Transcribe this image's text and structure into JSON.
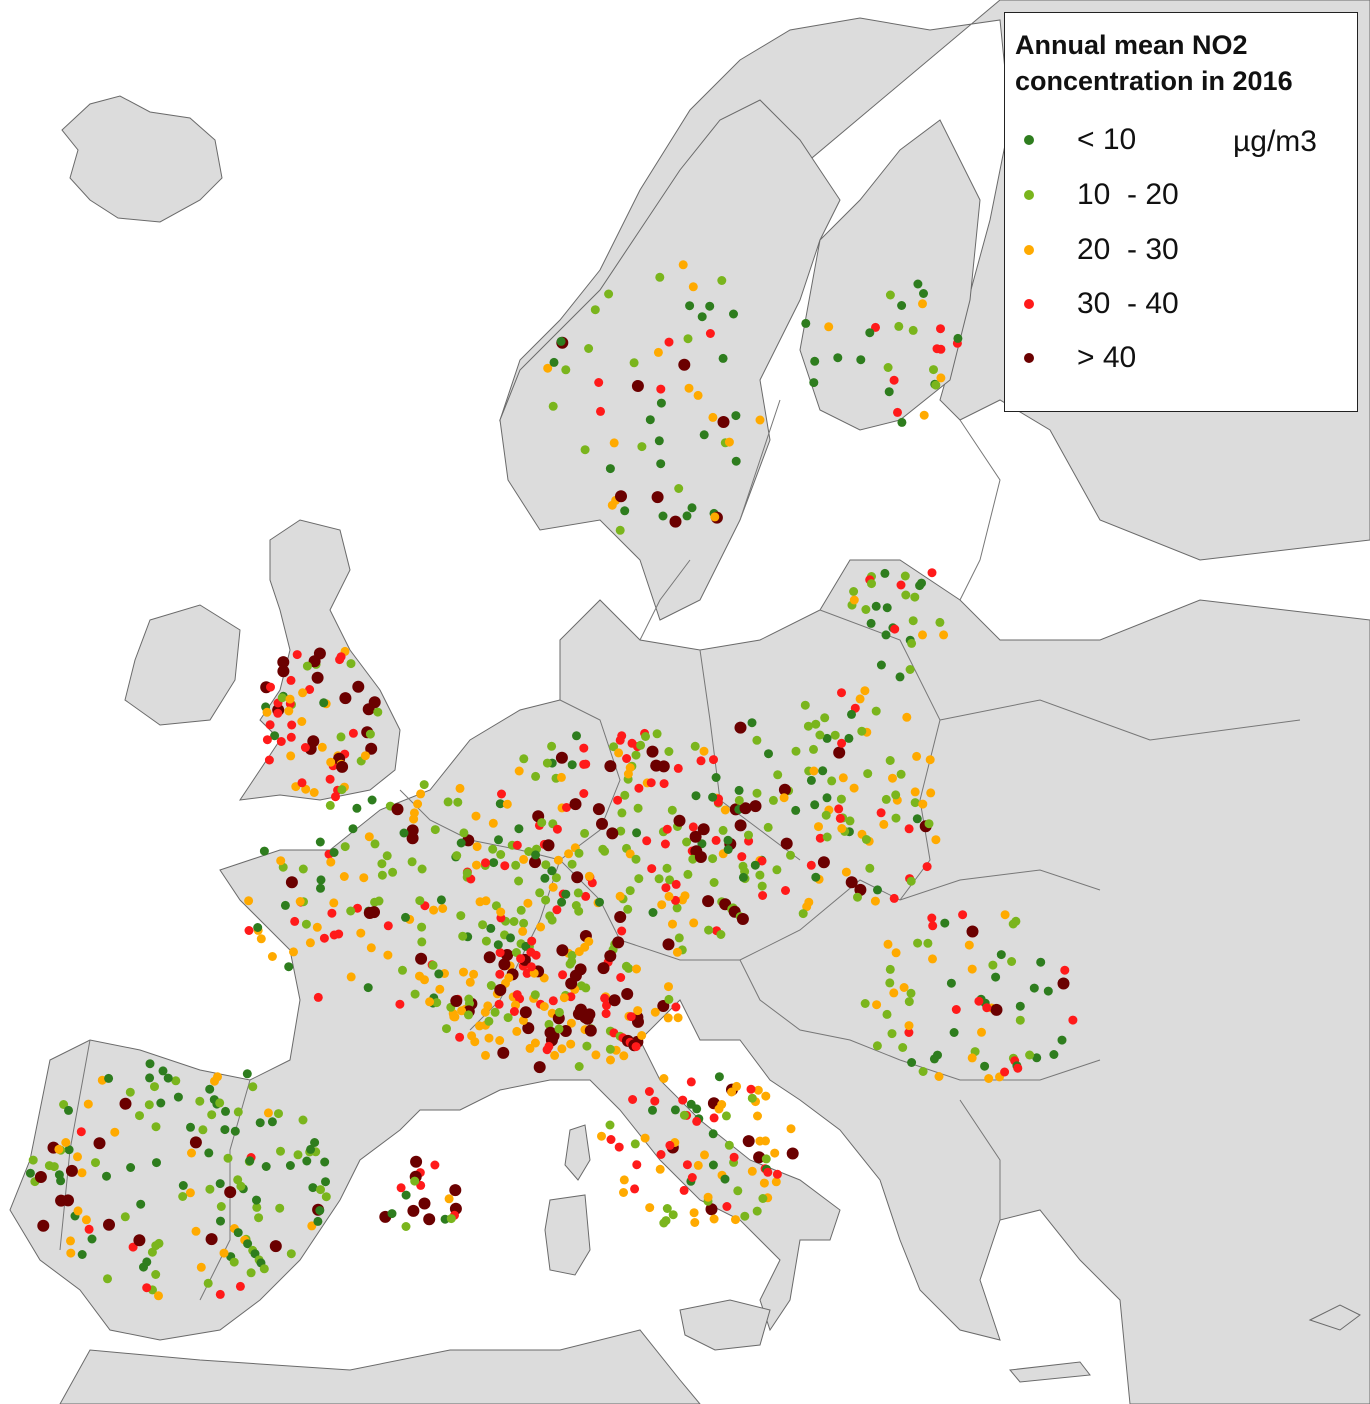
{
  "legend": {
    "title_line1": "Annual mean NO2",
    "title_line2": "concentration in 2016",
    "unit": "µg/m3",
    "classes": [
      {
        "label": "< 10",
        "color": "#2e7d1e"
      },
      {
        "label": "10  - 20",
        "color": "#7ab51d"
      },
      {
        "label": "20  - 30",
        "color": "#ffaa00"
      },
      {
        "label": "30  - 40",
        "color": "#ff1a1a"
      },
      {
        "label": "> 40",
        "color": "#6b0000"
      }
    ]
  },
  "colors": {
    "sea": "#ffffff",
    "land": "#d9d9d9",
    "land_dark": "#bdbdbd",
    "border": "#666666"
  }
}
